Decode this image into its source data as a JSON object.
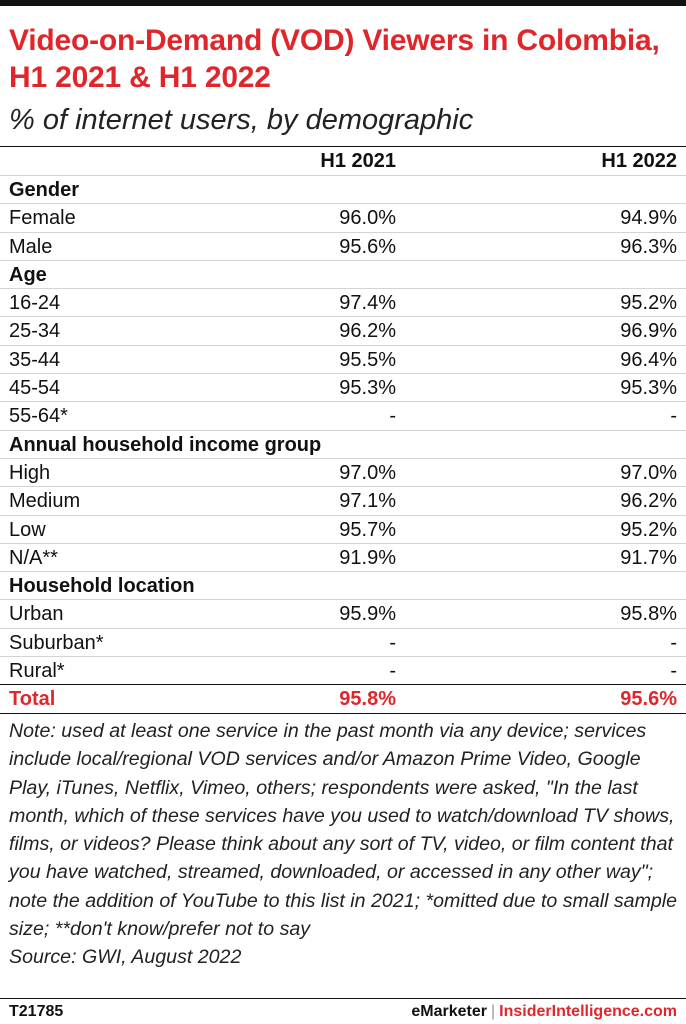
{
  "title": "Video-on-Demand (VOD) Viewers in Colombia, H1 2021 & H1 2022",
  "subtitle": "% of internet users, by demographic",
  "columns": [
    "H1 2021",
    "H1 2022"
  ],
  "rows": [
    {
      "label": "Gender",
      "section": true
    },
    {
      "label": "Female",
      "v1": "96.0%",
      "v2": "94.9%"
    },
    {
      "label": "Male",
      "v1": "95.6%",
      "v2": "96.3%"
    },
    {
      "label": "Age",
      "section": true
    },
    {
      "label": "16-24",
      "v1": "97.4%",
      "v2": "95.2%"
    },
    {
      "label": "25-34",
      "v1": "96.2%",
      "v2": "96.9%"
    },
    {
      "label": "35-44",
      "v1": "95.5%",
      "v2": "96.4%"
    },
    {
      "label": "45-54",
      "v1": "95.3%",
      "v2": "95.3%"
    },
    {
      "label": "55-64*",
      "v1": "-",
      "v2": "-"
    },
    {
      "label": "Annual household income group",
      "section": true
    },
    {
      "label": "High",
      "v1": "97.0%",
      "v2": "97.0%"
    },
    {
      "label": "Medium",
      "v1": "97.1%",
      "v2": "96.2%"
    },
    {
      "label": "Low",
      "v1": "95.7%",
      "v2": "95.2%"
    },
    {
      "label": "N/A**",
      "v1": "91.9%",
      "v2": "91.7%"
    },
    {
      "label": "Household location",
      "section": true
    },
    {
      "label": "Urban",
      "v1": "95.9%",
      "v2": "95.8%"
    },
    {
      "label": "Suburban*",
      "v1": "-",
      "v2": "-"
    },
    {
      "label": "Rural*",
      "v1": "-",
      "v2": "-"
    },
    {
      "label": "Total",
      "v1": "95.8%",
      "v2": "95.6%",
      "total": true
    }
  ],
  "chart_data": {
    "type": "table",
    "title": "Video-on-Demand (VOD) Viewers in Colombia, H1 2021 & H1 2022",
    "subtitle": "% of internet users, by demographic",
    "columns": [
      "H1 2021",
      "H1 2022"
    ],
    "groups": [
      {
        "name": "Gender",
        "rows": [
          {
            "label": "Female",
            "values": [
              96.0,
              94.9
            ]
          },
          {
            "label": "Male",
            "values": [
              95.6,
              96.3
            ]
          }
        ]
      },
      {
        "name": "Age",
        "rows": [
          {
            "label": "16-24",
            "values": [
              97.4,
              95.2
            ]
          },
          {
            "label": "25-34",
            "values": [
              96.2,
              96.9
            ]
          },
          {
            "label": "35-44",
            "values": [
              95.5,
              96.4
            ]
          },
          {
            "label": "45-54",
            "values": [
              95.3,
              95.3
            ]
          },
          {
            "label": "55-64*",
            "values": [
              null,
              null
            ]
          }
        ]
      },
      {
        "name": "Annual household income group",
        "rows": [
          {
            "label": "High",
            "values": [
              97.0,
              97.0
            ]
          },
          {
            "label": "Medium",
            "values": [
              97.1,
              96.2
            ]
          },
          {
            "label": "Low",
            "values": [
              95.7,
              95.2
            ]
          },
          {
            "label": "N/A**",
            "values": [
              91.9,
              91.7
            ]
          }
        ]
      },
      {
        "name": "Household location",
        "rows": [
          {
            "label": "Urban",
            "values": [
              95.9,
              95.8
            ]
          },
          {
            "label": "Suburban*",
            "values": [
              null,
              null
            ]
          },
          {
            "label": "Rural*",
            "values": [
              null,
              null
            ]
          }
        ]
      }
    ],
    "total": {
      "label": "Total",
      "values": [
        95.8,
        95.6
      ]
    }
  },
  "note": "Note: used at least one service in the past month via any device; services include local/regional VOD services and/or Amazon Prime Video, Google Play, iTunes, Netflix, Vimeo, others; respondents were asked, \"In the last month, which of these services have you used to watch/download TV shows, films, or videos? Please think about any sort of TV, video, or film content that you have watched, streamed, downloaded, or accessed in any other way\"; note the addition of YouTube to this list in 2021; *omitted due to small sample size; **don't know/prefer not to say",
  "source": "Source: GWI, August 2022",
  "footer": {
    "id": "T21785",
    "brand_left": "eMarketer",
    "separator": "|",
    "brand_right": "InsiderIntelligence.com"
  },
  "colors": {
    "accent": "#e0262b",
    "text": "#111111"
  }
}
